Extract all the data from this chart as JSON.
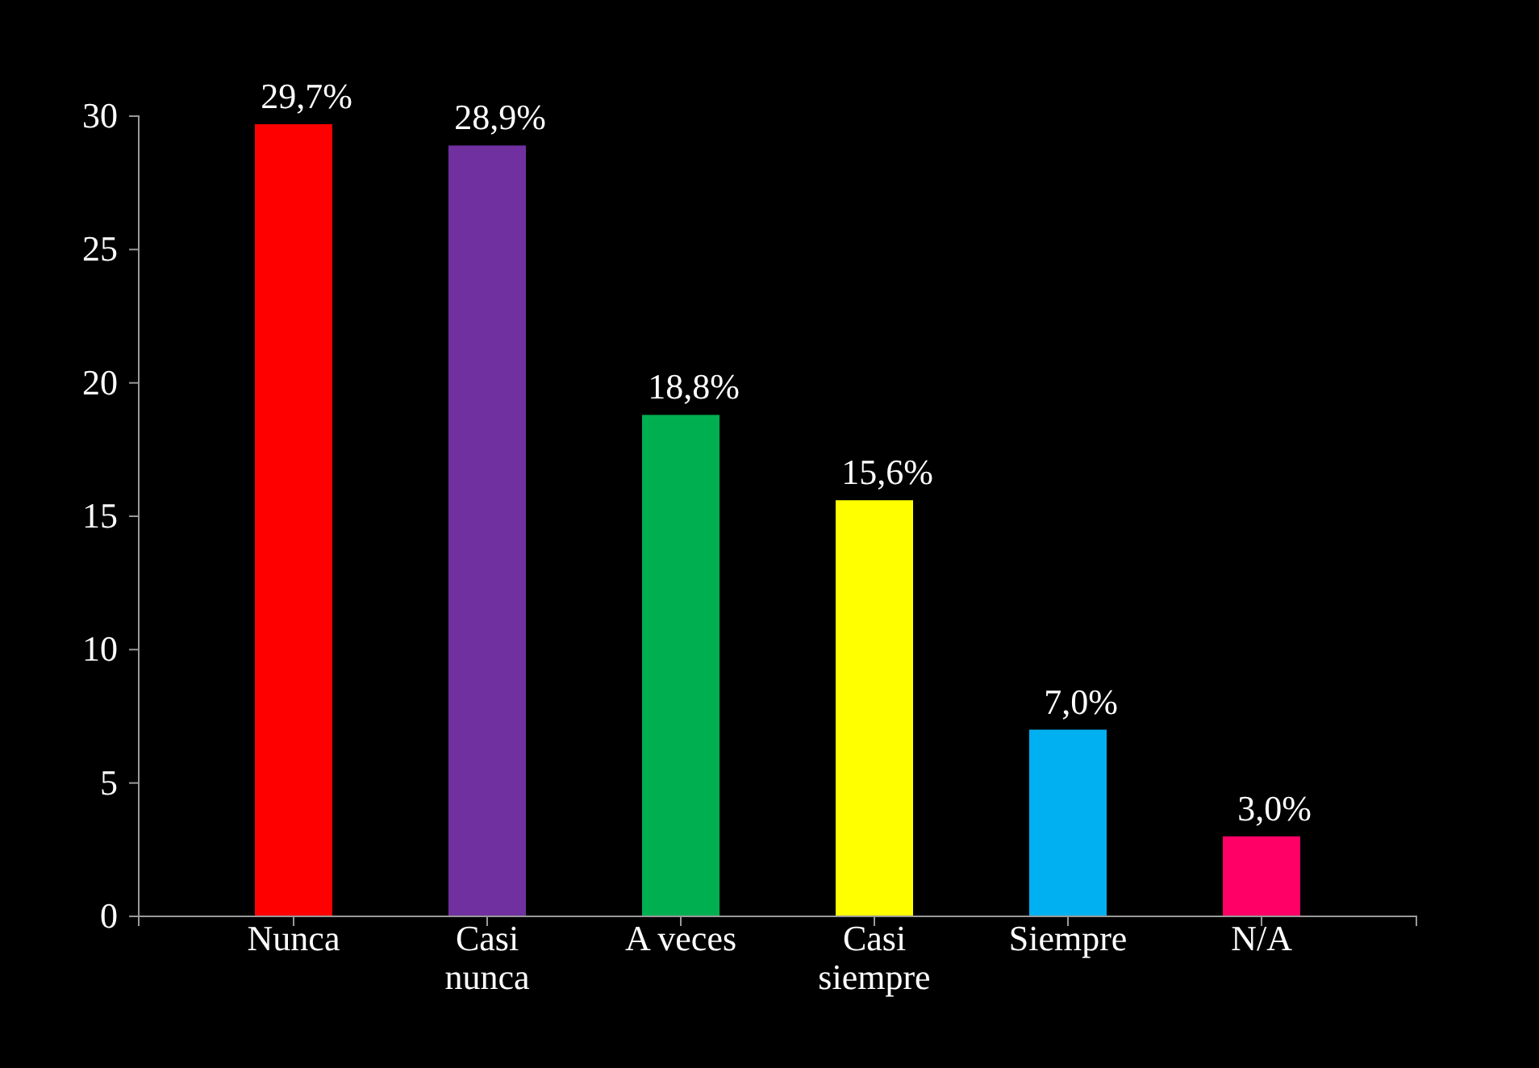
{
  "chart_data": {
    "type": "bar",
    "categories": [
      "Nunca",
      "Casi nunca",
      "A veces",
      "Casi siempre",
      "Siempre",
      "N/A"
    ],
    "values": [
      29.7,
      28.9,
      18.8,
      15.6,
      7.0,
      3.0
    ],
    "colors": [
      "#ff0000",
      "#7030a0",
      "#00b050",
      "#ffff00",
      "#00b0f0",
      "#ff0066"
    ],
    "value_labels": [
      "29,7%",
      "28,9%",
      "18,8%",
      "15,6%",
      "7,0%",
      "3,0%"
    ],
    "ylim": [
      0,
      30
    ],
    "yticks": [
      0,
      5,
      10,
      15,
      20,
      25,
      30
    ]
  }
}
